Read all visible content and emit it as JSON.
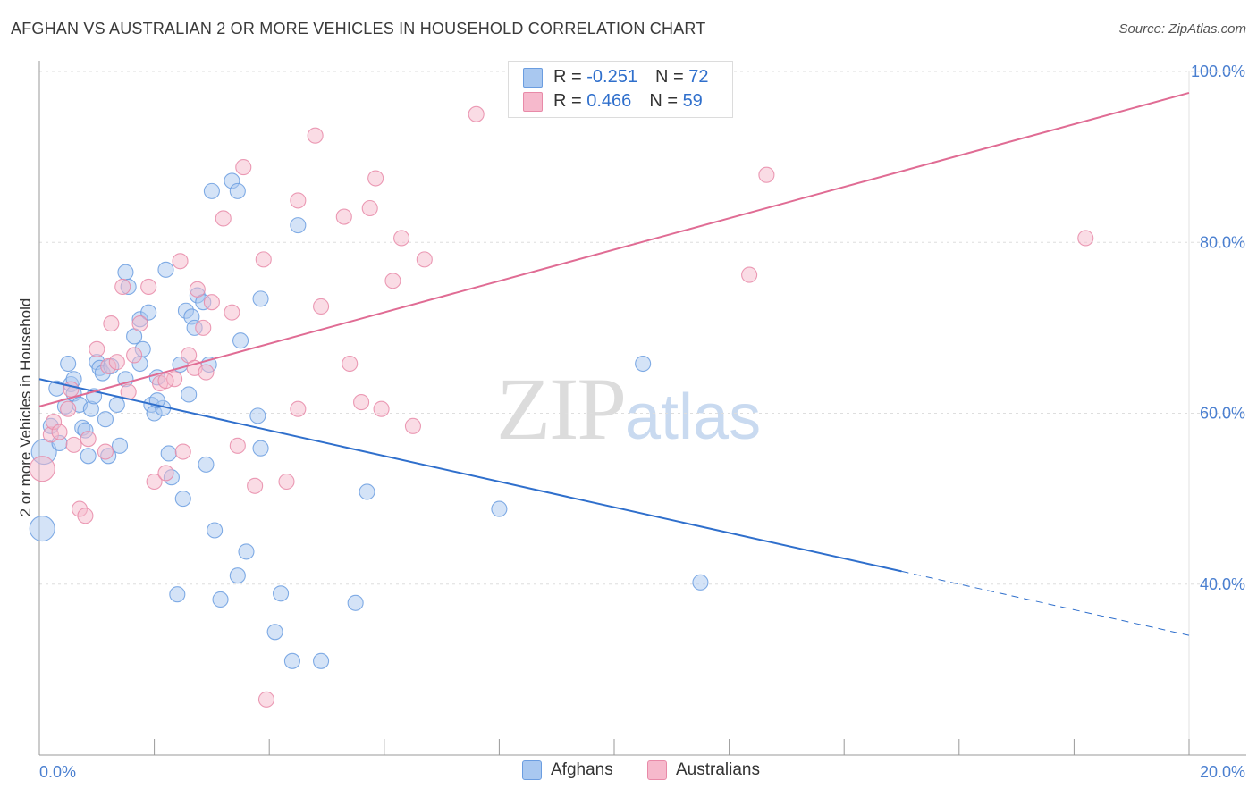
{
  "title": "AFGHAN VS AUSTRALIAN 2 OR MORE VEHICLES IN HOUSEHOLD CORRELATION CHART",
  "source": "Source: ZipAtlas.com",
  "watermark": {
    "zip": "ZIP",
    "atlas": "atlas"
  },
  "legend": {
    "rows": [
      {
        "r_label": "R = ",
        "r_value": "-0.251",
        "n_label": "N = ",
        "n_value": "72",
        "color": "#a9c8f0"
      },
      {
        "r_label": "R = ",
        "r_value": " 0.466",
        "n_label": "N = ",
        "n_value": "59",
        "color": "#f6b9cc"
      }
    ]
  },
  "bottom_legend": {
    "afghans": "Afghans",
    "australians": "Australians"
  },
  "chart_data": {
    "type": "scatter",
    "title": "AFGHAN VS AUSTRALIAN 2 OR MORE VEHICLES IN HOUSEHOLD CORRELATION CHART",
    "xlabel": "",
    "ylabel": "2 or more Vehicles in Household",
    "xlim": [
      0,
      20
    ],
    "ylim": [
      20,
      100
    ],
    "x_tick_labels": [
      "0.0%",
      "20.0%"
    ],
    "y_ticks": [
      40,
      60,
      80,
      100
    ],
    "y_tick_labels": [
      "40.0%",
      "60.0%",
      "80.0%",
      "100.0%"
    ],
    "grid": true,
    "series": [
      {
        "name": "Afghans",
        "color": "#6b9de0",
        "fill": "#a9c8f0",
        "trend": {
          "x0": 0,
          "y0": 64.0,
          "x1": 15.0,
          "y1": 41.5,
          "dash_to_x": 20,
          "dash_to_y": 34.0
        },
        "points": [
          [
            0.05,
            46.5
          ],
          [
            0.08,
            55.5
          ],
          [
            0.2,
            58.5
          ],
          [
            0.3,
            62.9
          ],
          [
            0.35,
            56.5
          ],
          [
            0.45,
            60.8
          ],
          [
            0.5,
            65.8
          ],
          [
            0.55,
            63.4
          ],
          [
            0.6,
            62.3
          ],
          [
            0.7,
            61.0
          ],
          [
            0.75,
            58.3
          ],
          [
            0.8,
            58.0
          ],
          [
            0.85,
            55.0
          ],
          [
            0.9,
            60.5
          ],
          [
            0.95,
            62.0
          ],
          [
            1.0,
            66.0
          ],
          [
            1.05,
            65.3
          ],
          [
            1.1,
            64.7
          ],
          [
            1.15,
            59.3
          ],
          [
            1.2,
            55.0
          ],
          [
            1.35,
            61.0
          ],
          [
            1.4,
            56.2
          ],
          [
            1.5,
            64.0
          ],
          [
            1.5,
            76.5
          ],
          [
            1.55,
            74.8
          ],
          [
            1.65,
            69.0
          ],
          [
            1.75,
            71.0
          ],
          [
            1.75,
            65.8
          ],
          [
            1.8,
            67.5
          ],
          [
            1.9,
            71.8
          ],
          [
            1.95,
            61.0
          ],
          [
            2.0,
            60.0
          ],
          [
            2.05,
            64.2
          ],
          [
            2.15,
            60.6
          ],
          [
            2.2,
            76.8
          ],
          [
            2.25,
            55.3
          ],
          [
            2.3,
            52.5
          ],
          [
            2.4,
            38.8
          ],
          [
            2.45,
            65.7
          ],
          [
            2.5,
            50.0
          ],
          [
            2.55,
            72.0
          ],
          [
            2.6,
            62.2
          ],
          [
            2.65,
            71.3
          ],
          [
            2.7,
            70.0
          ],
          [
            2.75,
            73.8
          ],
          [
            2.85,
            73.0
          ],
          [
            2.9,
            54.0
          ],
          [
            2.95,
            65.7
          ],
          [
            3.0,
            86.0
          ],
          [
            3.05,
            46.3
          ],
          [
            3.15,
            38.2
          ],
          [
            3.35,
            87.2
          ],
          [
            3.45,
            86.0
          ],
          [
            3.45,
            41.0
          ],
          [
            3.5,
            68.5
          ],
          [
            3.6,
            43.8
          ],
          [
            3.8,
            59.7
          ],
          [
            3.85,
            55.9
          ],
          [
            3.85,
            73.4
          ],
          [
            4.1,
            34.4
          ],
          [
            4.2,
            38.9
          ],
          [
            4.4,
            31.0
          ],
          [
            4.5,
            82.0
          ],
          [
            4.9,
            31.0
          ],
          [
            5.5,
            37.8
          ],
          [
            5.7,
            50.8
          ],
          [
            8.0,
            48.8
          ],
          [
            10.5,
            65.8
          ],
          [
            11.5,
            40.2
          ],
          [
            0.6,
            64.0
          ],
          [
            1.25,
            65.5
          ],
          [
            2.05,
            61.5
          ]
        ]
      },
      {
        "name": "Australians",
        "color": "#e88aa8",
        "fill": "#f6b9cc",
        "trend": {
          "x0": 0,
          "y0": 60.8,
          "x1": 20,
          "y1": 97.5
        },
        "points": [
          [
            0.05,
            53.5
          ],
          [
            0.2,
            57.5
          ],
          [
            0.25,
            59.0
          ],
          [
            0.35,
            57.8
          ],
          [
            0.5,
            60.5
          ],
          [
            0.55,
            62.8
          ],
          [
            0.6,
            56.3
          ],
          [
            0.7,
            48.8
          ],
          [
            0.8,
            48.0
          ],
          [
            0.85,
            57.0
          ],
          [
            1.0,
            67.5
          ],
          [
            1.15,
            55.5
          ],
          [
            1.2,
            65.5
          ],
          [
            1.25,
            70.5
          ],
          [
            1.35,
            66.0
          ],
          [
            1.45,
            74.8
          ],
          [
            1.55,
            62.5
          ],
          [
            1.65,
            66.8
          ],
          [
            1.75,
            70.5
          ],
          [
            1.9,
            74.8
          ],
          [
            2.0,
            52.0
          ],
          [
            2.1,
            63.5
          ],
          [
            2.2,
            53.0
          ],
          [
            2.35,
            64.0
          ],
          [
            2.45,
            77.8
          ],
          [
            2.5,
            55.5
          ],
          [
            2.6,
            66.8
          ],
          [
            2.7,
            65.3
          ],
          [
            2.75,
            74.5
          ],
          [
            2.85,
            70.0
          ],
          [
            2.9,
            64.8
          ],
          [
            3.0,
            73.0
          ],
          [
            3.2,
            82.8
          ],
          [
            3.35,
            71.8
          ],
          [
            3.45,
            56.2
          ],
          [
            3.55,
            88.8
          ],
          [
            3.75,
            51.5
          ],
          [
            3.9,
            78.0
          ],
          [
            3.95,
            26.5
          ],
          [
            4.3,
            52.0
          ],
          [
            4.5,
            84.9
          ],
          [
            4.5,
            60.5
          ],
          [
            4.8,
            92.5
          ],
          [
            4.9,
            72.5
          ],
          [
            5.3,
            83.0
          ],
          [
            5.4,
            65.8
          ],
          [
            5.6,
            61.3
          ],
          [
            5.75,
            84.0
          ],
          [
            5.85,
            87.5
          ],
          [
            5.95,
            60.5
          ],
          [
            6.15,
            75.5
          ],
          [
            6.3,
            80.5
          ],
          [
            6.5,
            58.5
          ],
          [
            6.7,
            78.0
          ],
          [
            7.6,
            95.0
          ],
          [
            12.35,
            76.2
          ],
          [
            12.65,
            87.9
          ],
          [
            18.2,
            80.5
          ],
          [
            2.2,
            63.8
          ]
        ]
      }
    ]
  }
}
